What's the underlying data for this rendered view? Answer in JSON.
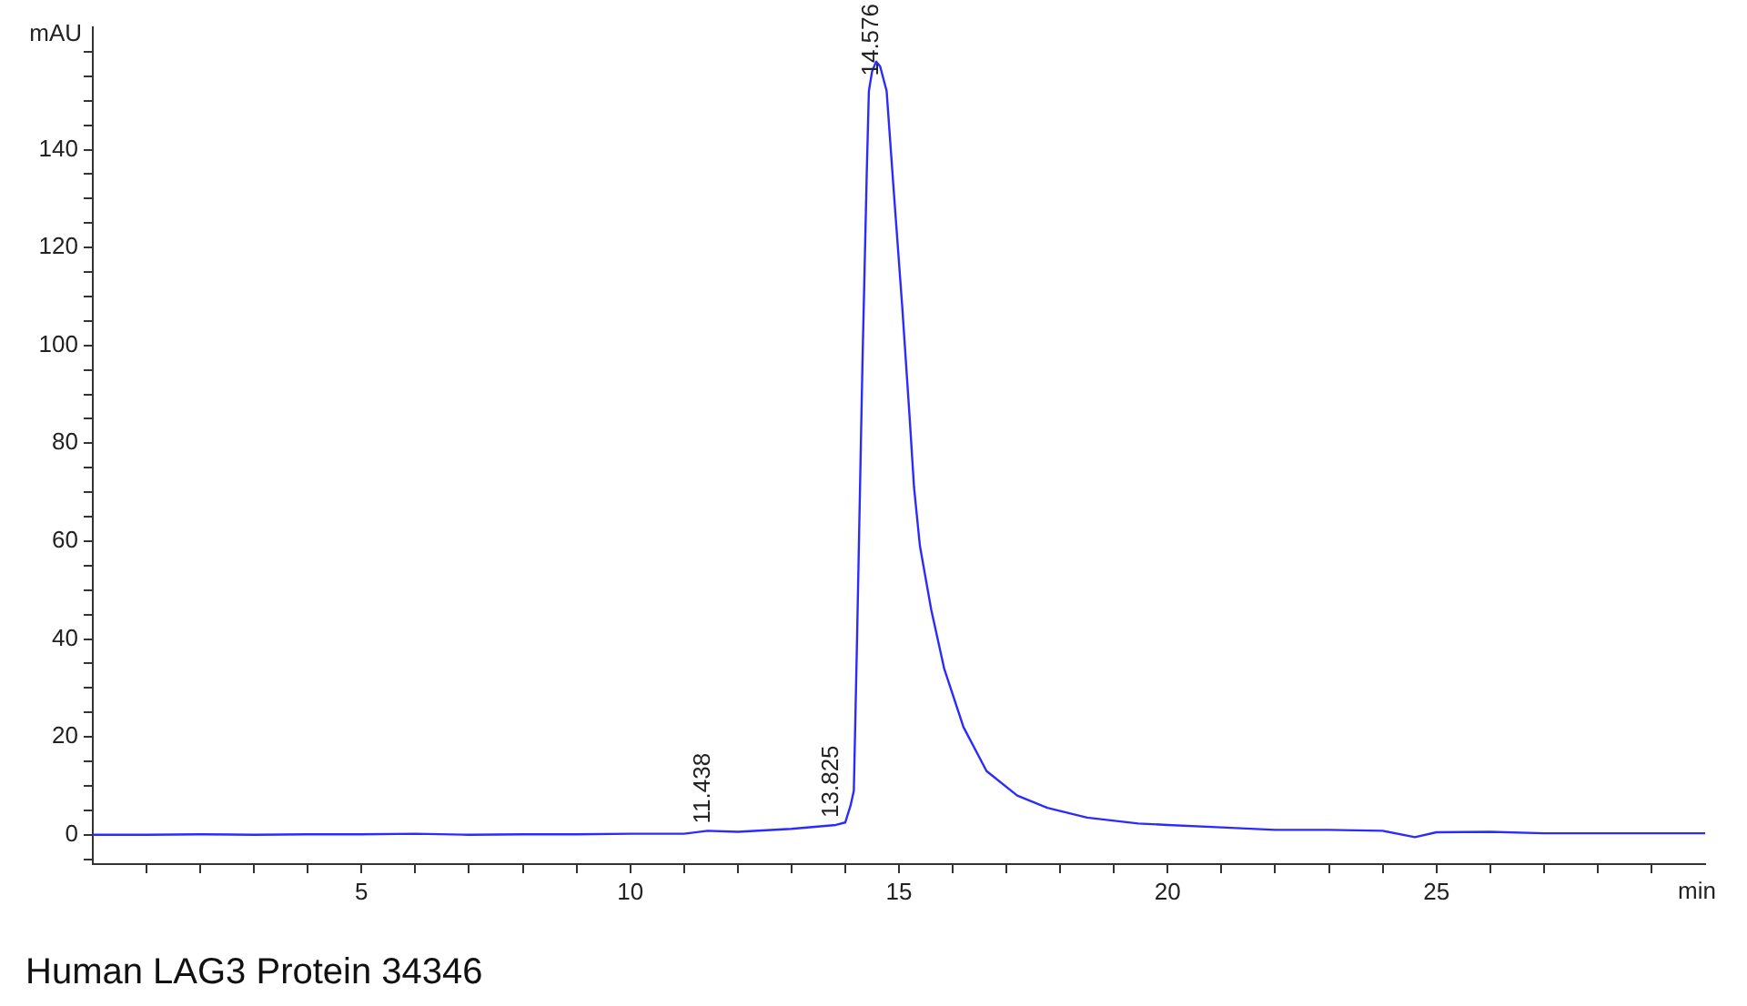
{
  "chart_data": {
    "type": "line",
    "xlabel": "min",
    "ylabel": "mAU",
    "x": [
      0,
      1,
      2,
      3,
      4,
      5,
      6,
      7,
      8,
      9,
      10,
      11,
      11.438,
      12,
      13,
      13.825,
      14.0,
      14.1,
      14.16,
      14.22,
      14.32,
      14.4,
      14.44,
      14.5,
      14.576,
      14.65,
      14.77,
      14.9,
      15.06,
      15.2,
      15.28,
      15.39,
      15.6,
      15.84,
      16.2,
      16.63,
      17.2,
      17.76,
      18.5,
      19.45,
      20,
      21,
      22,
      23,
      24,
      24.6,
      25,
      26,
      27,
      28,
      29,
      30
    ],
    "series": [
      {
        "color": "#2b2bff",
        "values": [
          0,
          0,
          0.1,
          0,
          0.1,
          0.1,
          0.2,
          0,
          0.1,
          0.1,
          0.2,
          0.2,
          0.8,
          0.6,
          1.2,
          2,
          2.5,
          6,
          9,
          40,
          96,
          135,
          152,
          156,
          158,
          157,
          152,
          132,
          108,
          85,
          71,
          59,
          46,
          34,
          22,
          13,
          8,
          5.5,
          3.5,
          2.3,
          2,
          1.5,
          1,
          1,
          0.8,
          -0.5,
          0.5,
          0.6,
          0.3,
          0.3,
          0.3,
          0.3
        ]
      }
    ],
    "xlim": [
      0,
      30
    ],
    "xticks": [
      {
        "value": 1,
        "label": null
      },
      {
        "value": 2,
        "label": null
      },
      {
        "value": 3,
        "label": null
      },
      {
        "value": 4,
        "label": null
      },
      5,
      {
        "value": 6,
        "label": null
      },
      {
        "value": 7,
        "label": null
      },
      {
        "value": 8,
        "label": null
      },
      {
        "value": 9,
        "label": null
      },
      10,
      {
        "value": 11,
        "label": null
      },
      {
        "value": 12,
        "label": null
      },
      {
        "value": 13,
        "label": null
      },
      {
        "value": 14,
        "label": null
      },
      15,
      {
        "value": 16,
        "label": null
      },
      {
        "value": 17,
        "label": null
      },
      {
        "value": 18,
        "label": null
      },
      {
        "value": 19,
        "label": null
      },
      20,
      {
        "value": 21,
        "label": null
      },
      {
        "value": 22,
        "label": null
      },
      {
        "value": 23,
        "label": null
      },
      {
        "value": 24,
        "label": null
      },
      25,
      {
        "value": 26,
        "label": null
      },
      {
        "value": 27,
        "label": null
      },
      {
        "value": 28,
        "label": null
      },
      {
        "value": 29,
        "label": null
      }
    ],
    "ylim": [
      -6,
      165
    ],
    "yticks": [
      {
        "value": -5,
        "label": null
      },
      0,
      {
        "value": 5,
        "label": null
      },
      {
        "value": 10,
        "label": null
      },
      {
        "value": 15,
        "label": null
      },
      20,
      {
        "value": 25,
        "label": null
      },
      {
        "value": 30,
        "label": null
      },
      {
        "value": 35,
        "label": null
      },
      40,
      {
        "value": 45,
        "label": null
      },
      {
        "value": 50,
        "label": null
      },
      {
        "value": 55,
        "label": null
      },
      60,
      {
        "value": 65,
        "label": null
      },
      {
        "value": 70,
        "label": null
      },
      {
        "value": 75,
        "label": null
      },
      80,
      {
        "value": 85,
        "label": null
      },
      {
        "value": 90,
        "label": null
      },
      {
        "value": 95,
        "label": null
      },
      100,
      {
        "value": 105,
        "label": null
      },
      {
        "value": 110,
        "label": null
      },
      {
        "value": 115,
        "label": null
      },
      120,
      {
        "value": 125,
        "label": null
      },
      {
        "value": 130,
        "label": null
      },
      {
        "value": 135,
        "label": null
      },
      140,
      {
        "value": 145,
        "label": null
      },
      {
        "value": 150,
        "label": null
      },
      {
        "value": 155,
        "label": null
      },
      {
        "value": 160,
        "label": null
      }
    ],
    "grid": false,
    "legend": false,
    "marker": "none",
    "line_style": "solid",
    "annotations": [
      {
        "text": "11.438",
        "x": 11.438,
        "y": 0.8
      },
      {
        "text": "13.825",
        "x": 13.825,
        "y": 2
      },
      {
        "text": "14.576",
        "x": 14.576,
        "y": 158
      },
      "Human LAG3 Protein 34346"
    ]
  }
}
